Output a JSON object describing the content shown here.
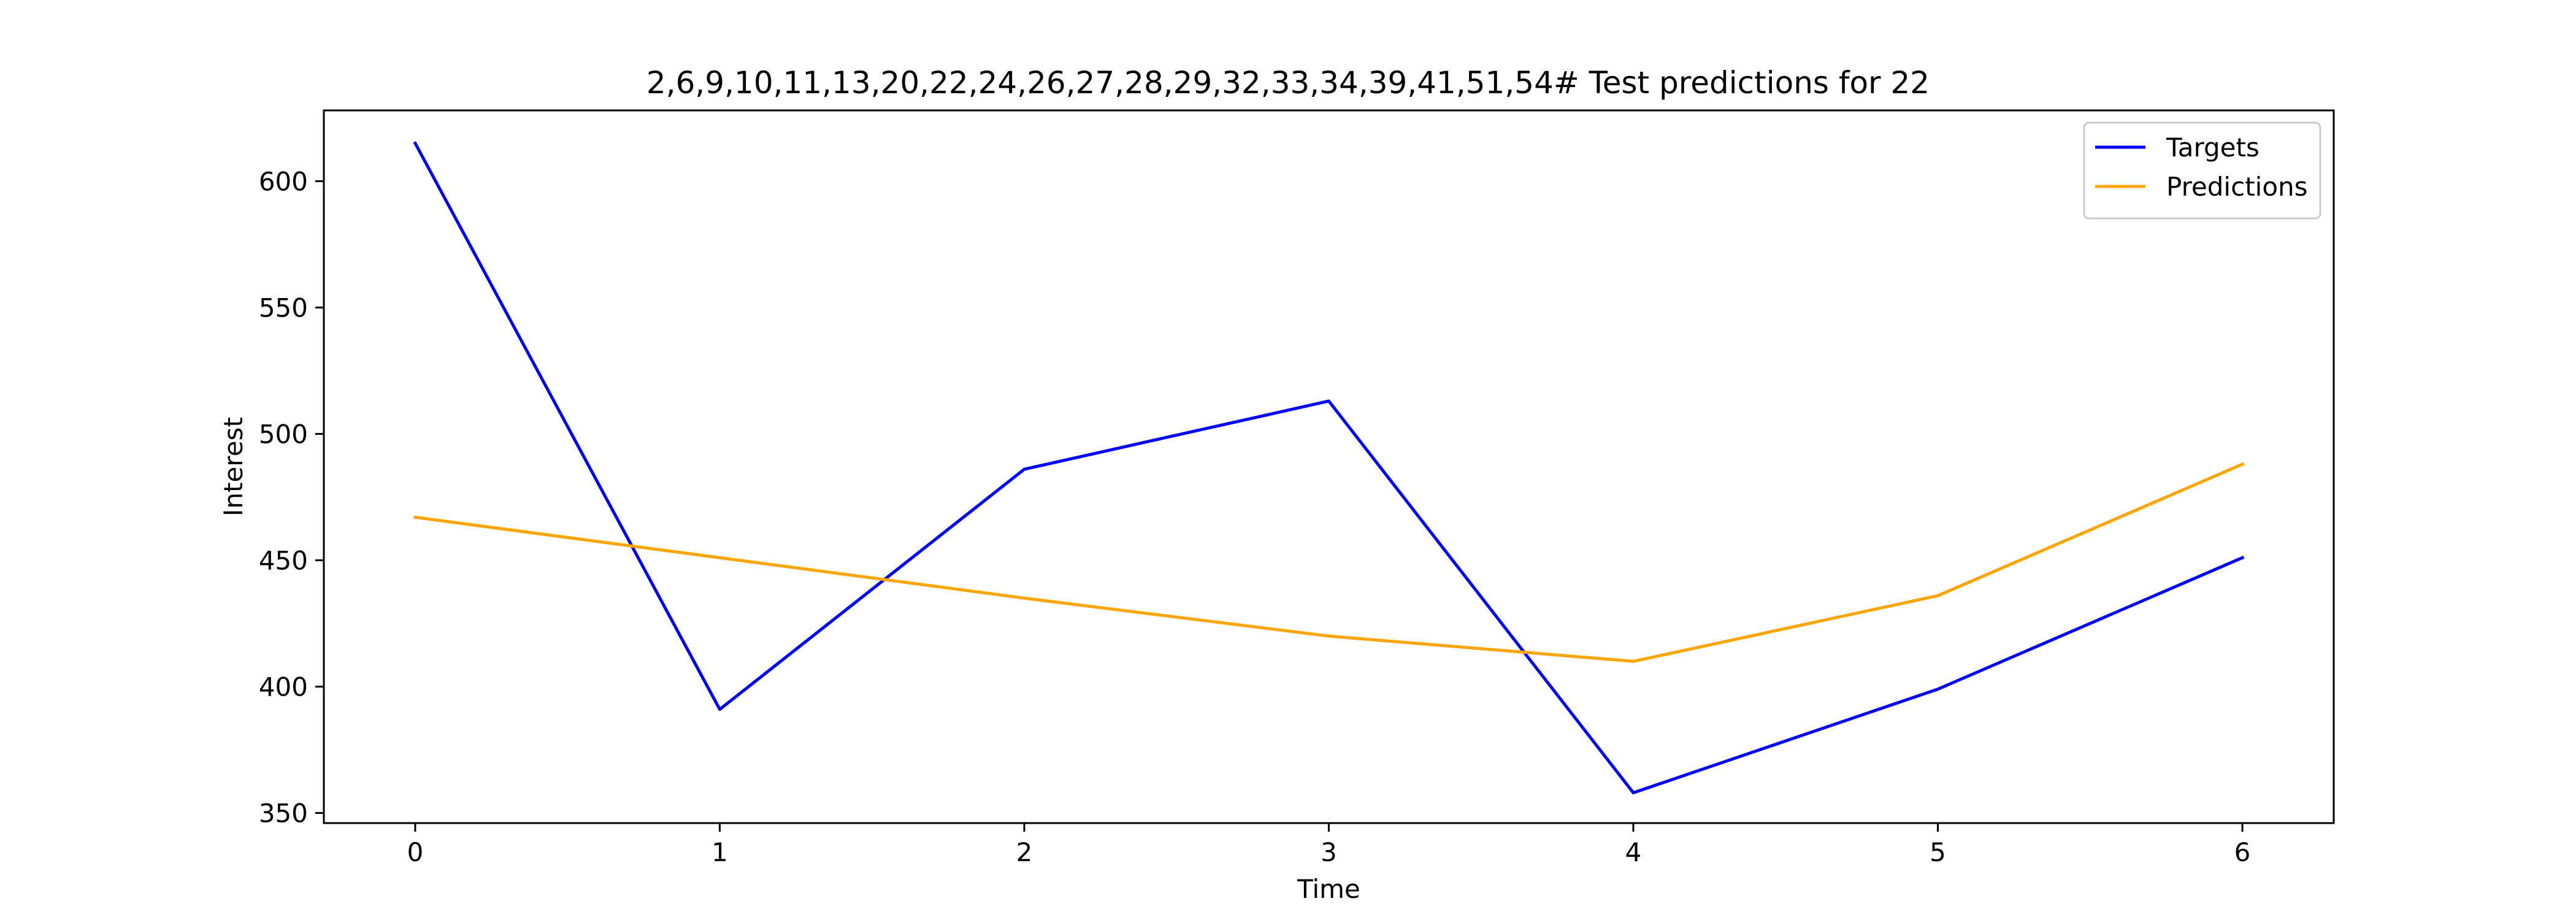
{
  "chart_data": {
    "type": "line",
    "title": "2,6,9,10,11,13,20,22,24,26,27,28,29,32,33,34,39,41,51,54# Test predictions for 22",
    "xlabel": "Time",
    "ylabel": "Interest",
    "x": [
      0,
      1,
      2,
      3,
      4,
      5,
      6
    ],
    "xticks": [
      "0",
      "1",
      "2",
      "3",
      "4",
      "5",
      "6"
    ],
    "yticks": [
      "350",
      "400",
      "450",
      "500",
      "550",
      "600"
    ],
    "xlim": [
      -0.3,
      6.3
    ],
    "ylim": [
      346,
      628
    ],
    "grid": false,
    "legend_position": "top-right",
    "series": [
      {
        "name": "Targets",
        "color": "#0000ff",
        "values": [
          615,
          391,
          486,
          513,
          358,
          399,
          451
        ]
      },
      {
        "name": "Predictions",
        "color": "#ffa500",
        "values": [
          467,
          451,
          435,
          420,
          410,
          436,
          488
        ]
      }
    ]
  }
}
